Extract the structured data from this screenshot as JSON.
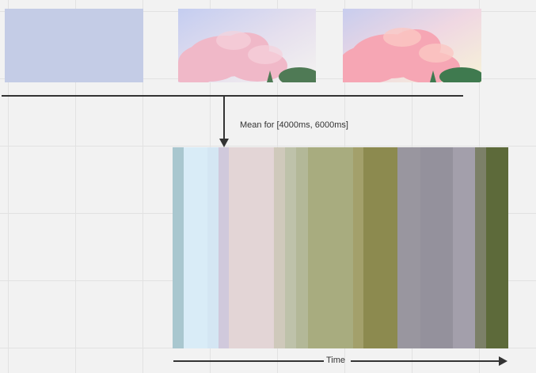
{
  "mean_label": "Mean for [4000ms, 6000ms]",
  "time_label": "Time",
  "frames": [
    {
      "name": "frame-1",
      "fill": "#c4cce6"
    },
    {
      "name": "frame-2",
      "fill": "#f0d6e4"
    },
    {
      "name": "frame-3",
      "fill": "#f4d8dc"
    }
  ],
  "stripe_colors": [
    "#a9c7cf",
    "#d9ecf7",
    "#d4e6f3",
    "#d0c9dc",
    "#e3d5d6",
    "#e2d4d4",
    "#cfc9bb",
    "#bec2aa",
    "#b3b898",
    "#a8ac7f",
    "#a3a06b",
    "#8c8a4f",
    "#99969f",
    "#94919c",
    "#a39fab",
    "#7c8068",
    "#5d6a3a"
  ],
  "stripe_weights": [
    14,
    30,
    14,
    13,
    57,
    1,
    14,
    14,
    15,
    57,
    13,
    43,
    29,
    42,
    28,
    14,
    28
  ]
}
